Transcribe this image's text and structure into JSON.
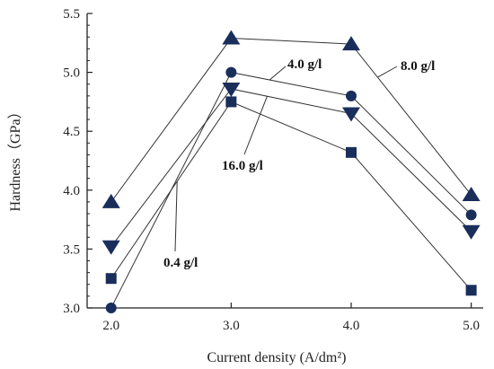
{
  "chart_data": {
    "type": "line",
    "x": [
      2.0,
      3.0,
      4.0,
      5.0
    ],
    "x_tick_labels": [
      "2.0",
      "3.0",
      "4.0",
      "5.0"
    ],
    "y_tick_labels": [
      "3.0",
      "3.5",
      "4.0",
      "4.5",
      "5.0",
      "5.5"
    ],
    "xlim": [
      1.8,
      5.1
    ],
    "ylim": [
      3.0,
      5.5
    ],
    "xlabel": "Current density (A/dm²)",
    "ylabel": "Hardness（GPa）",
    "title": "",
    "grid": false,
    "series": [
      {
        "name": "8.0 g/l",
        "marker": "triangle-up",
        "values": [
          3.9,
          5.29,
          5.24,
          3.96
        ]
      },
      {
        "name": "4.0 g/l",
        "marker": "circle",
        "values": [
          3.0,
          5.0,
          4.8,
          3.79
        ]
      },
      {
        "name": "16.0 g/l",
        "marker": "triangle-down",
        "values": [
          3.52,
          4.86,
          4.65,
          3.65
        ]
      },
      {
        "name": "0.4 g/l",
        "marker": "square",
        "values": [
          3.25,
          4.75,
          4.32,
          3.15
        ]
      }
    ],
    "annotations": [
      {
        "text": "8.0 g/l",
        "series": "8.0 g/l"
      },
      {
        "text": "4.0 g/l",
        "series": "4.0 g/l"
      },
      {
        "text": "16.0 g/l",
        "series": "16.0 g/l"
      },
      {
        "text": "0.4 g/l",
        "series": "0.4 g/l"
      }
    ],
    "colors": {
      "line": "#333333",
      "marker": "#1a2e5c"
    }
  }
}
